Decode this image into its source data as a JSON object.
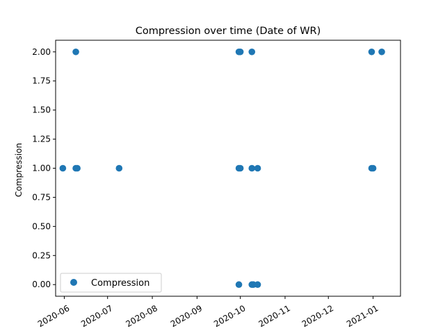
{
  "chart_data": {
    "type": "scatter",
    "title": "Compression  over time (Date of WR)",
    "xlabel": "",
    "ylabel": "Compression",
    "x_type": "date",
    "xlim": [
      "2020-05-26",
      "2021-01-20"
    ],
    "ylim": [
      -0.1,
      2.1
    ],
    "x_ticks": [
      "2020-06-01",
      "2020-07-01",
      "2020-08-01",
      "2020-09-01",
      "2020-10-01",
      "2020-11-01",
      "2020-12-01",
      "2021-01-01"
    ],
    "x_tick_labels": [
      "2020-06",
      "2020-07",
      "2020-08",
      "2020-09",
      "2020-10",
      "2020-11",
      "2020-12",
      "2021-01"
    ],
    "y_ticks": [
      0.0,
      0.25,
      0.5,
      0.75,
      1.0,
      1.25,
      1.5,
      1.75,
      2.0
    ],
    "y_tick_labels": [
      "0.00",
      "0.25",
      "0.50",
      "0.75",
      "1.00",
      "1.25",
      "1.50",
      "1.75",
      "2.00"
    ],
    "grid": false,
    "legend_position": "bottom-left",
    "series": [
      {
        "name": "Compression",
        "color": "#1f77b4",
        "marker": "circle",
        "points": [
          {
            "x": "2020-05-31",
            "y": 1
          },
          {
            "x": "2020-06-09",
            "y": 2
          },
          {
            "x": "2020-06-09",
            "y": 1
          },
          {
            "x": "2020-06-10",
            "y": 1
          },
          {
            "x": "2020-07-09",
            "y": 1
          },
          {
            "x": "2020-09-30",
            "y": 0
          },
          {
            "x": "2020-09-30",
            "y": 1
          },
          {
            "x": "2020-09-30",
            "y": 2
          },
          {
            "x": "2020-10-01",
            "y": 1
          },
          {
            "x": "2020-10-01",
            "y": 2
          },
          {
            "x": "2020-10-09",
            "y": 2
          },
          {
            "x": "2020-10-09",
            "y": 1
          },
          {
            "x": "2020-10-09",
            "y": 0
          },
          {
            "x": "2020-10-10",
            "y": 0
          },
          {
            "x": "2020-10-13",
            "y": 1
          },
          {
            "x": "2020-10-13",
            "y": 0
          },
          {
            "x": "2020-12-31",
            "y": 2
          },
          {
            "x": "2020-12-31",
            "y": 1
          },
          {
            "x": "2021-01-01",
            "y": 1
          },
          {
            "x": "2021-01-07",
            "y": 2
          }
        ]
      }
    ]
  }
}
